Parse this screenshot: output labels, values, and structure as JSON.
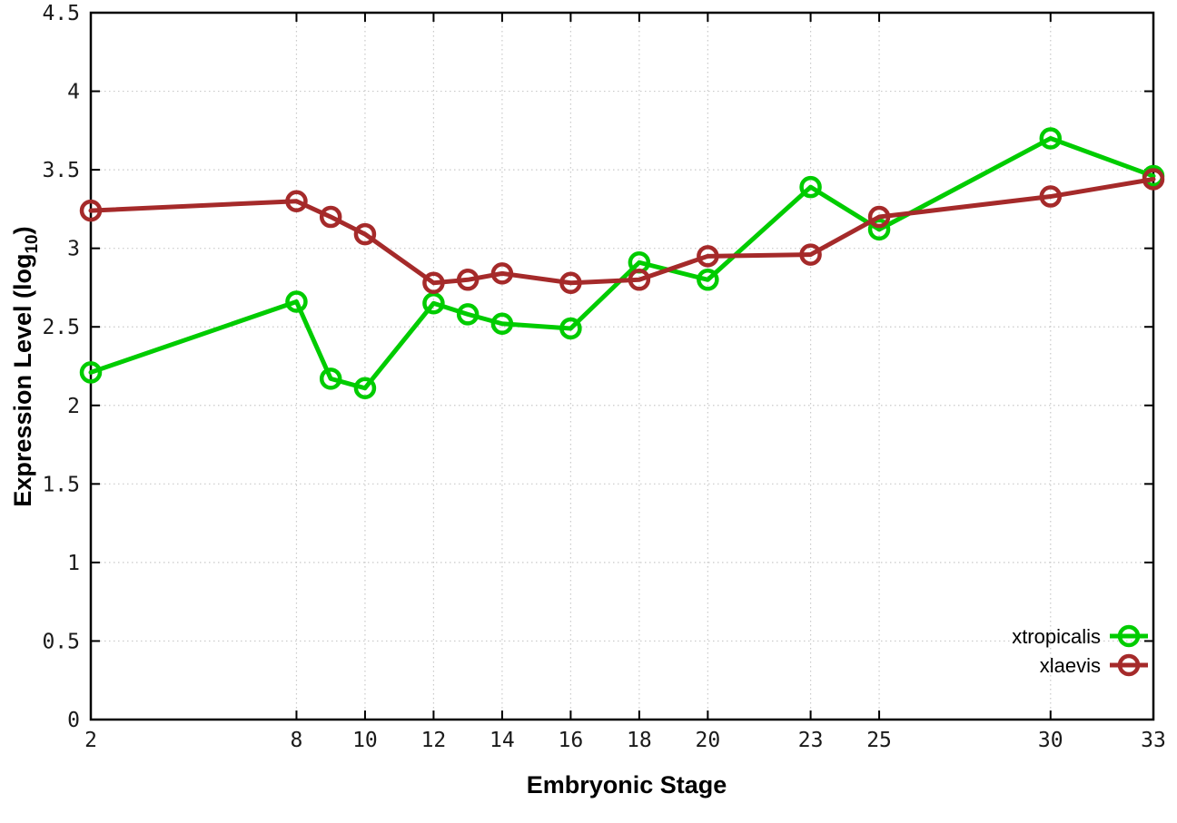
{
  "figure": {
    "background": "#ffffff",
    "xlabel": "Embryonic Stage",
    "ylabel_main": "Expression Level (log",
    "ylabel_sub": "10",
    "ylabel_close": ")"
  },
  "chart_data": {
    "type": "line",
    "title": "",
    "xlabel": "Embryonic Stage",
    "ylabel": "Expression Level (log10)",
    "x": [
      2,
      8,
      9,
      10,
      12,
      13,
      14,
      16,
      18,
      20,
      23,
      25,
      30,
      33
    ],
    "x_tick_labels": [
      "2",
      "8",
      "10",
      "12",
      "14",
      "16",
      "18",
      "20",
      "23",
      "25",
      "30",
      "33"
    ],
    "x_tick_values": [
      2,
      8,
      10,
      12,
      14,
      16,
      18,
      20,
      23,
      25,
      30,
      33
    ],
    "xlim": [
      2,
      33
    ],
    "ylim": [
      0,
      4.5
    ],
    "y_tick_values": [
      0,
      0.5,
      1,
      1.5,
      2,
      2.5,
      3,
      3.5,
      4,
      4.5
    ],
    "y_tick_labels": [
      "0",
      "0.5",
      "1",
      "1.5",
      "2",
      "2.5",
      "3",
      "3.5",
      "4",
      "4.5"
    ],
    "grid": true,
    "legend_position": "bottom-right",
    "series": [
      {
        "name": "xtropicalis",
        "color": "#00cc00",
        "marker": "open-circle",
        "values": [
          2.21,
          2.66,
          2.17,
          2.11,
          2.65,
          2.58,
          2.52,
          2.49,
          2.91,
          2.8,
          3.39,
          3.12,
          3.7,
          3.46
        ]
      },
      {
        "name": "xlaevis",
        "color": "#a52a2a",
        "marker": "open-circle",
        "values": [
          3.24,
          3.3,
          3.2,
          3.09,
          2.78,
          2.8,
          2.84,
          2.78,
          2.8,
          2.95,
          2.96,
          3.2,
          3.33,
          3.44
        ]
      }
    ]
  }
}
